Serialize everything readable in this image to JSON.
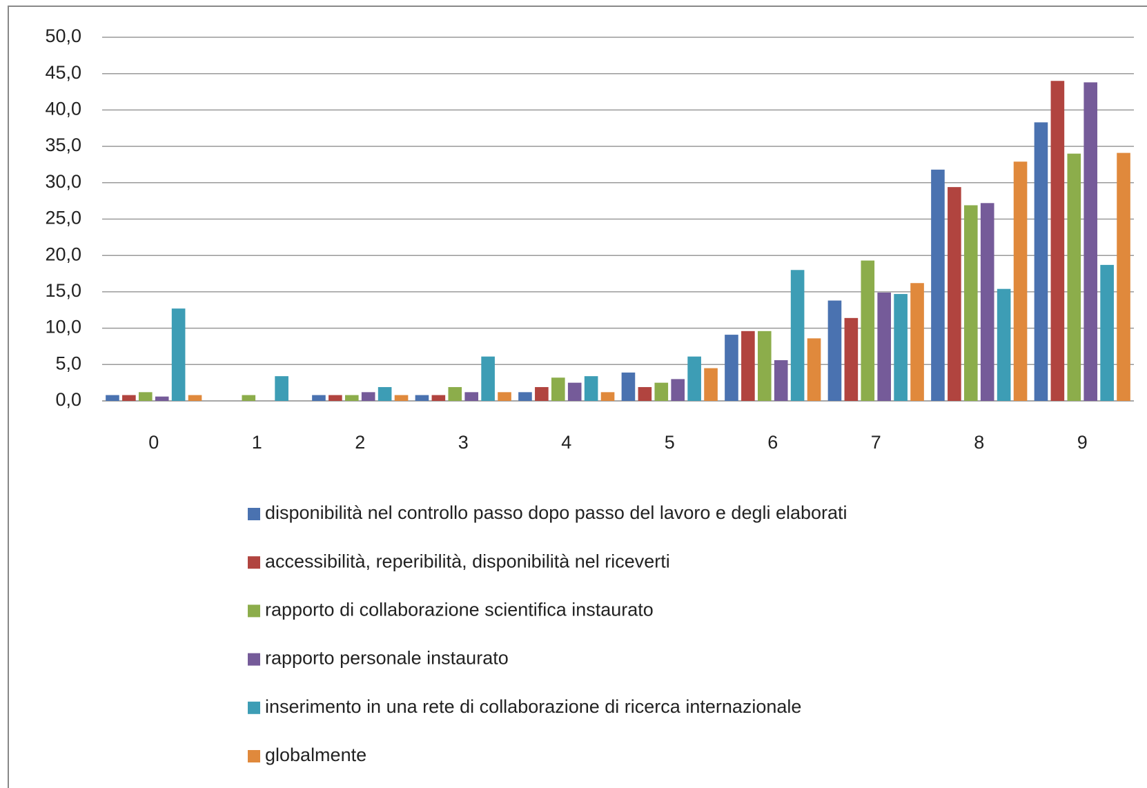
{
  "chart_data": {
    "type": "bar",
    "categories": [
      "0",
      "1",
      "2",
      "3",
      "4",
      "5",
      "6",
      "7",
      "8",
      "9"
    ],
    "series": [
      {
        "name": "disponibilità nel controllo passo dopo passo del lavoro e degli elaborati",
        "color": "#4a72b0",
        "values": [
          0.8,
          0,
          0.8,
          0.8,
          1.2,
          3.9,
          9.1,
          13.8,
          31.8,
          38.3
        ]
      },
      {
        "name": "accessibilità, reperibilità, disponibilità nel riceverti",
        "color": "#b1443f",
        "values": [
          0.8,
          0,
          0.8,
          0.8,
          1.9,
          1.9,
          9.6,
          11.4,
          29.4,
          44.0
        ]
      },
      {
        "name": "rapporto di collaborazione scientifica instaurato",
        "color": "#8cad4b",
        "values": [
          1.2,
          0.8,
          0.8,
          1.9,
          3.2,
          2.5,
          9.6,
          19.3,
          26.9,
          34.0
        ]
      },
      {
        "name": "rapporto personale instaurato",
        "color": "#755b99",
        "values": [
          0.6,
          0,
          1.2,
          1.2,
          2.5,
          3.0,
          5.6,
          14.9,
          27.2,
          43.8
        ]
      },
      {
        "name": "inserimento in una rete di collaborazione di ricerca internazionale",
        "color": "#3d9db5",
        "values": [
          12.7,
          3.4,
          1.9,
          6.1,
          3.4,
          6.1,
          18.0,
          14.7,
          15.4,
          18.7
        ]
      },
      {
        "name": "globalmente",
        "color": "#e0893c",
        "values": [
          0.8,
          0,
          0.8,
          1.2,
          1.2,
          4.5,
          8.6,
          16.2,
          32.9,
          34.1
        ]
      }
    ],
    "ylim": [
      0,
      50
    ],
    "yticks": [
      {
        "value": 0,
        "label": "0,0"
      },
      {
        "value": 5,
        "label": "5,0"
      },
      {
        "value": 10,
        "label": "10,0"
      },
      {
        "value": 15,
        "label": "15,0"
      },
      {
        "value": 20,
        "label": "20,0"
      },
      {
        "value": 25,
        "label": "25,0"
      },
      {
        "value": 30,
        "label": "30,0"
      },
      {
        "value": 35,
        "label": "35,0"
      },
      {
        "value": 40,
        "label": "40,0"
      },
      {
        "value": 45,
        "label": "45,0"
      },
      {
        "value": 50,
        "label": "50,0"
      }
    ],
    "grid": true,
    "legend": "bottom"
  }
}
